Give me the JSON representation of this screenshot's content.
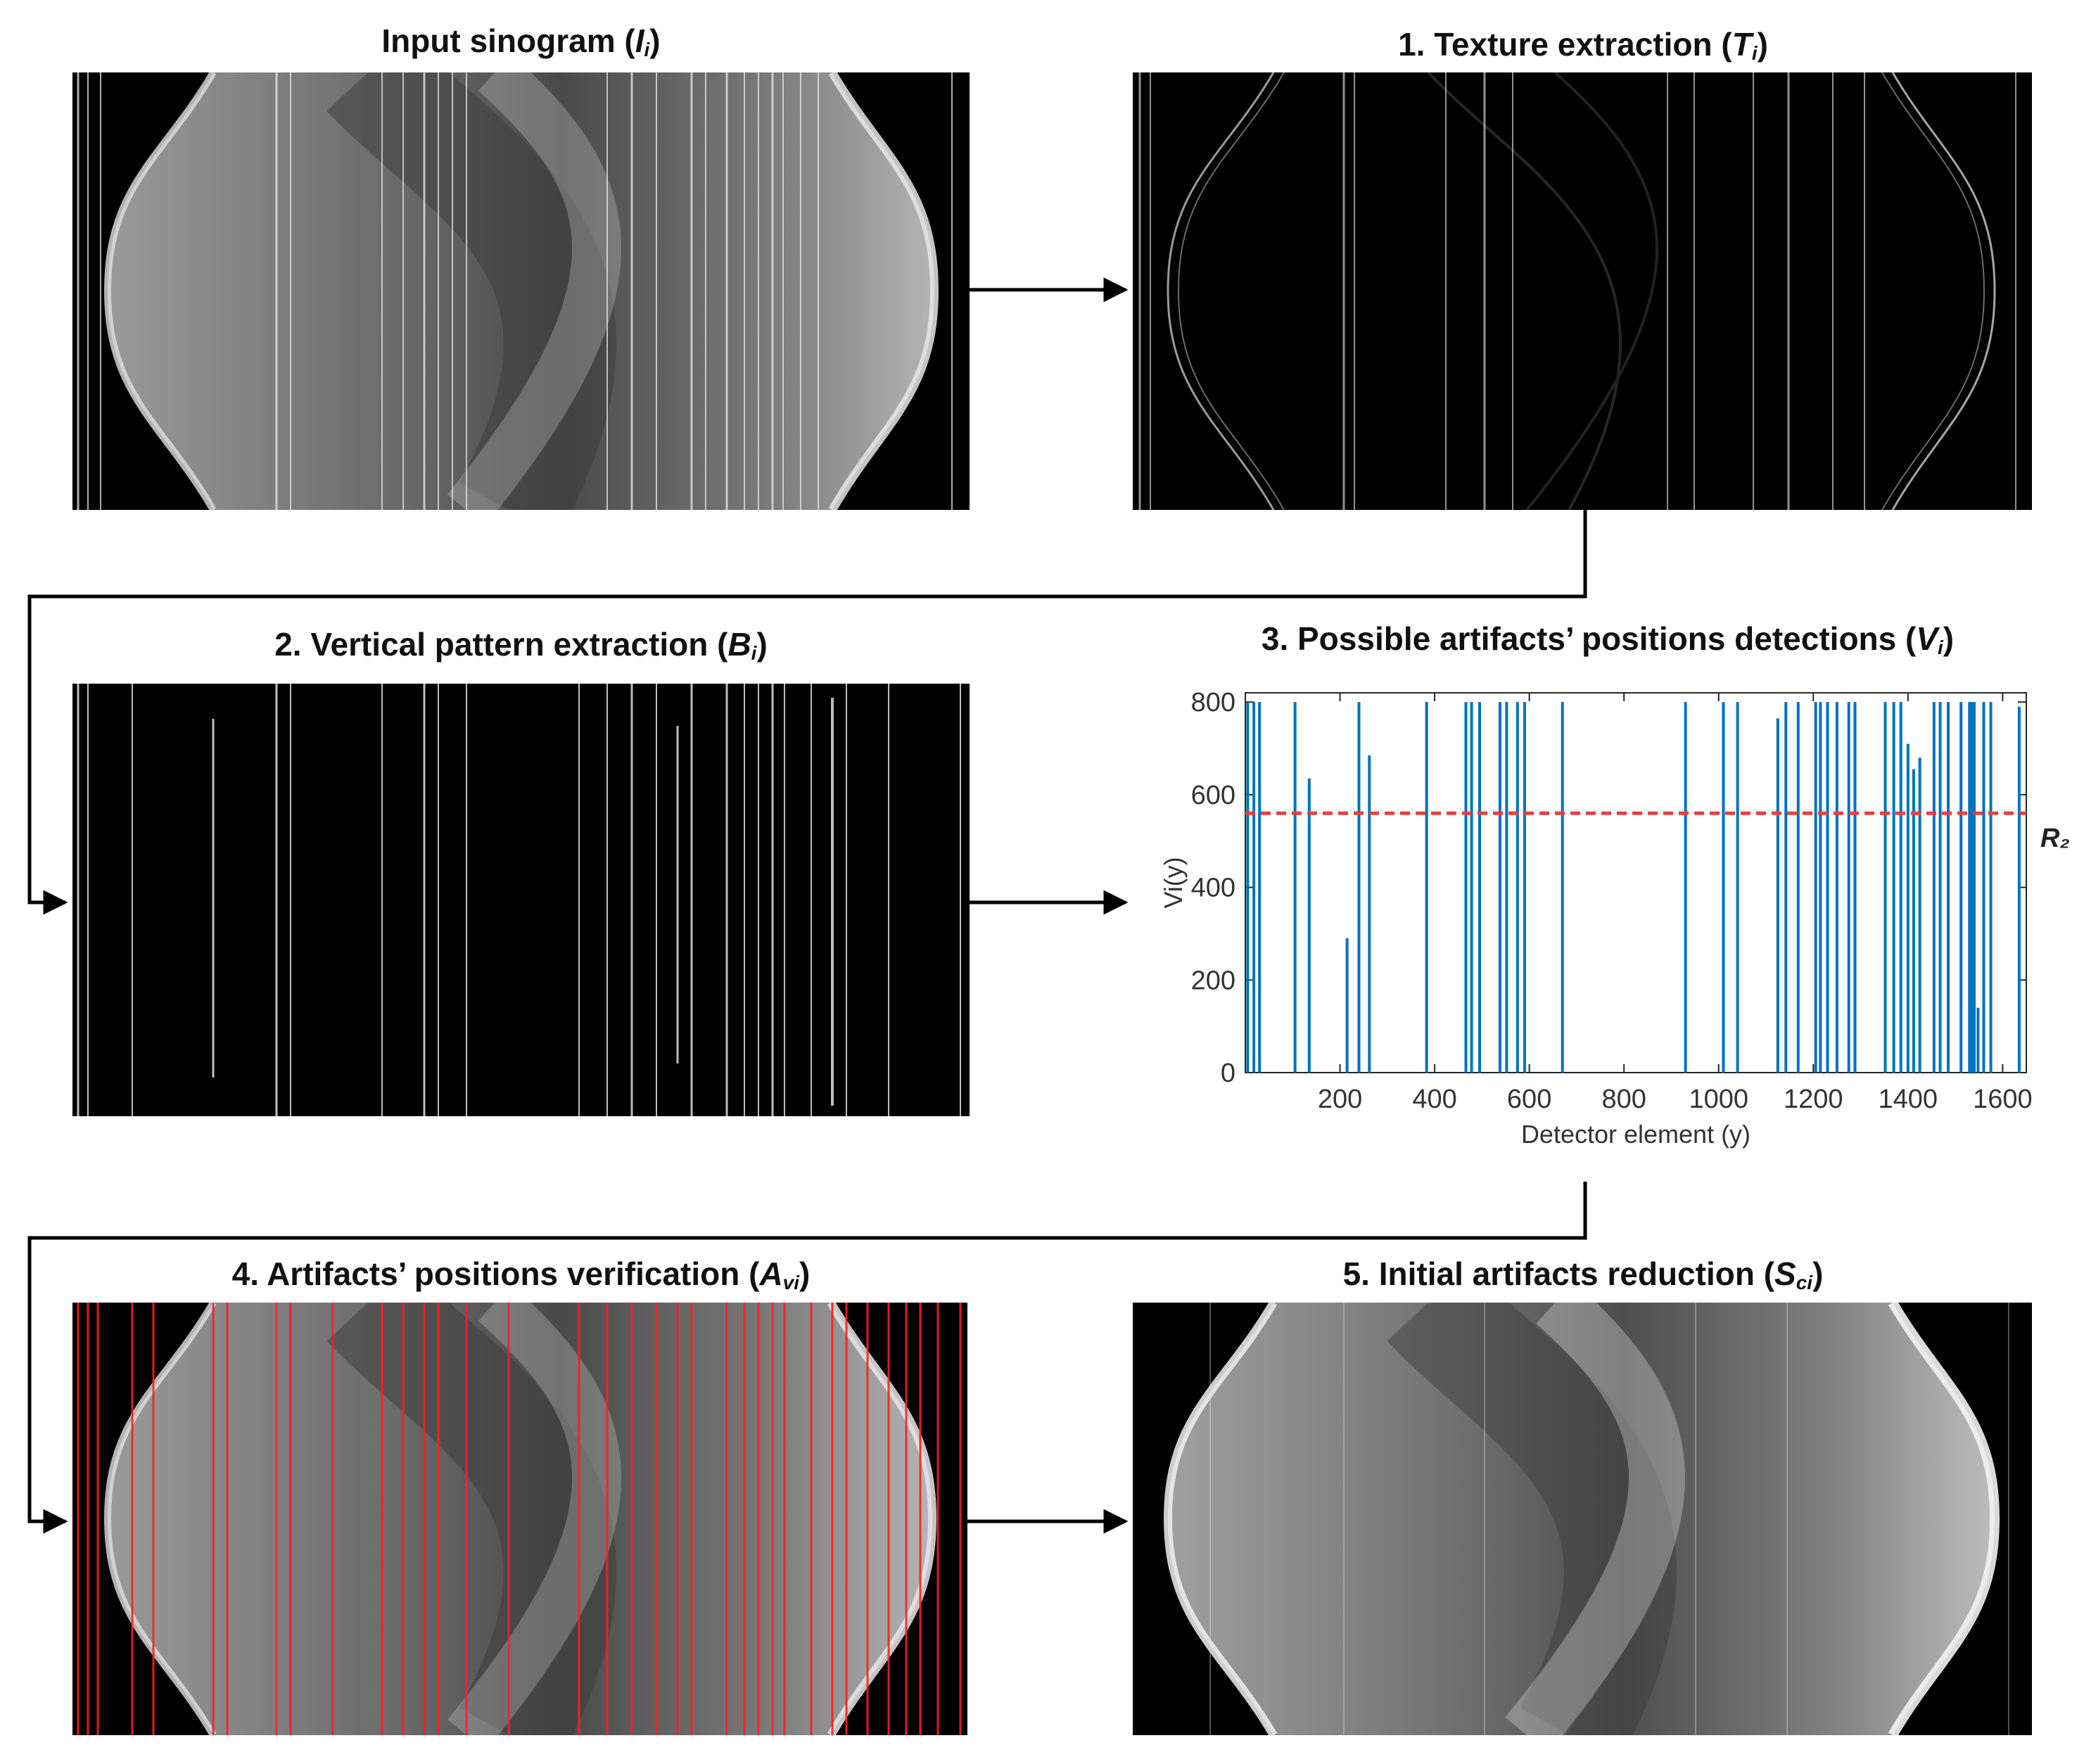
{
  "panels": {
    "input": {
      "title_text": "Input sinogram (",
      "symbol": "I",
      "subscript": "i",
      "close": ")"
    },
    "texture": {
      "title_text": "1. Texture extraction (",
      "symbol": "T",
      "subscript": "i",
      "close": ")"
    },
    "vertical": {
      "title_text": "2. Vertical pattern extraction (",
      "symbol": "B",
      "subscript": "i",
      "close": ")"
    },
    "detect": {
      "title_text": "3. Possible artifacts’ positions detections (",
      "symbol": "V",
      "subscript": "i",
      "close": ")"
    },
    "verify": {
      "title_text": "4. Artifacts’ positions verification (",
      "symbol": "A",
      "subscript": "vi",
      "close": ")"
    },
    "reduce": {
      "title_text": "5. Initial artifacts reduction (",
      "symbol": "S",
      "subscript": "ci",
      "close": ")"
    }
  },
  "colors": {
    "stem": "#0072BD",
    "threshold": "#E8403A",
    "artifact_line": "#FF1E1E"
  },
  "chart_data": {
    "type": "bar",
    "xlabel": "Detector element (y)",
    "ylabel": "Vi(y)",
    "xlim": [
      0,
      1650
    ],
    "ylim": [
      0,
      820
    ],
    "xticks": [
      200,
      400,
      600,
      800,
      1000,
      1200,
      1400,
      1600
    ],
    "yticks": [
      0,
      200,
      400,
      600,
      800
    ],
    "threshold": {
      "label": "R₂",
      "value": 560
    },
    "x": [
      5,
      18,
      30,
      105,
      135,
      215,
      240,
      262,
      383,
      466,
      478,
      495,
      538,
      552,
      575,
      590,
      670,
      930,
      1010,
      1040,
      1125,
      1142,
      1168,
      1205,
      1215,
      1230,
      1250,
      1275,
      1288,
      1352,
      1370,
      1385,
      1400,
      1412,
      1425,
      1455,
      1468,
      1485,
      1512,
      1530,
      1535,
      1540,
      1548,
      1560,
      1575,
      1635
    ],
    "values": [
      800,
      800,
      800,
      800,
      635,
      290,
      800,
      685,
      800,
      800,
      800,
      800,
      800,
      800,
      800,
      800,
      800,
      800,
      800,
      800,
      765,
      800,
      800,
      800,
      800,
      800,
      800,
      800,
      800,
      800,
      800,
      800,
      710,
      655,
      680,
      800,
      800,
      800,
      800,
      800,
      800,
      800,
      140,
      800,
      800,
      790
    ]
  }
}
